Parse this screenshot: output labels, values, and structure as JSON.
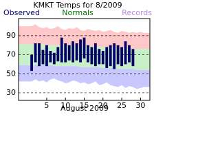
{
  "chart_data": {
    "type": "range-bar",
    "title": "KMKT Temps for 8/2009",
    "x_label": "August 2009",
    "legend": [
      {
        "name": "Observed",
        "color": "#000066"
      },
      {
        "name": "Normals",
        "color": "#007700"
      },
      {
        "name": "Records",
        "color": "#bb88dd"
      }
    ],
    "x": [
      1,
      2,
      3,
      4,
      5,
      6,
      7,
      8,
      9,
      10,
      11,
      12,
      13,
      14,
      15,
      16,
      17,
      18,
      19,
      20,
      21,
      22,
      23,
      24,
      25,
      26,
      27,
      28,
      29,
      30,
      31
    ],
    "observed_high": [
      70,
      82,
      82,
      75,
      80,
      74,
      72,
      78,
      88,
      82,
      80,
      84,
      82,
      86,
      88,
      80,
      78,
      82,
      76,
      74,
      78,
      80,
      82,
      80,
      78,
      84,
      80,
      76,
      null,
      null,
      null
    ],
    "observed_low": [
      53,
      62,
      58,
      60,
      58,
      62,
      60,
      63,
      62,
      62,
      64,
      62,
      64,
      62,
      66,
      62,
      60,
      58,
      60,
      60,
      56,
      58,
      55,
      60,
      58,
      60,
      62,
      58,
      null,
      null,
      null
    ],
    "normal_high": [
      81,
      81,
      81,
      81,
      80,
      80,
      80,
      80,
      80,
      80,
      80,
      79,
      79,
      79,
      79,
      79,
      79,
      78,
      78,
      78,
      78,
      78,
      77,
      77,
      77,
      77,
      77,
      76,
      76,
      76,
      76
    ],
    "normal_low": [
      59,
      59,
      59,
      59,
      59,
      59,
      58,
      58,
      58,
      58,
      58,
      58,
      58,
      57,
      57,
      57,
      57,
      57,
      57,
      56,
      56,
      56,
      56,
      55,
      55,
      55,
      55,
      55,
      54,
      54,
      54
    ],
    "record_high": [
      100,
      102,
      99,
      98,
      99,
      97,
      98,
      100,
      97,
      96,
      98,
      97,
      99,
      96,
      95,
      97,
      96,
      95,
      96,
      94,
      95,
      96,
      94,
      93,
      95,
      94,
      93,
      94,
      93,
      94,
      93
    ],
    "record_low": [
      42,
      44,
      42,
      43,
      41,
      44,
      45,
      43,
      42,
      40,
      41,
      43,
      42,
      40,
      41,
      39,
      40,
      42,
      38,
      39,
      41,
      38,
      37,
      36,
      38,
      35,
      37,
      36,
      34,
      35,
      36
    ],
    "colors": {
      "observed": "#000066",
      "normal": "#c8f0c8",
      "record_high": "#ffc8c8",
      "record_low": "#c8c8ff"
    },
    "xlim": [
      -2.5,
      32.5
    ],
    "xticks": [
      5,
      10,
      15,
      20,
      25,
      30
    ],
    "ylim": [
      22,
      108
    ],
    "yticks": [
      30,
      50,
      70,
      90
    ],
    "grid": true
  }
}
